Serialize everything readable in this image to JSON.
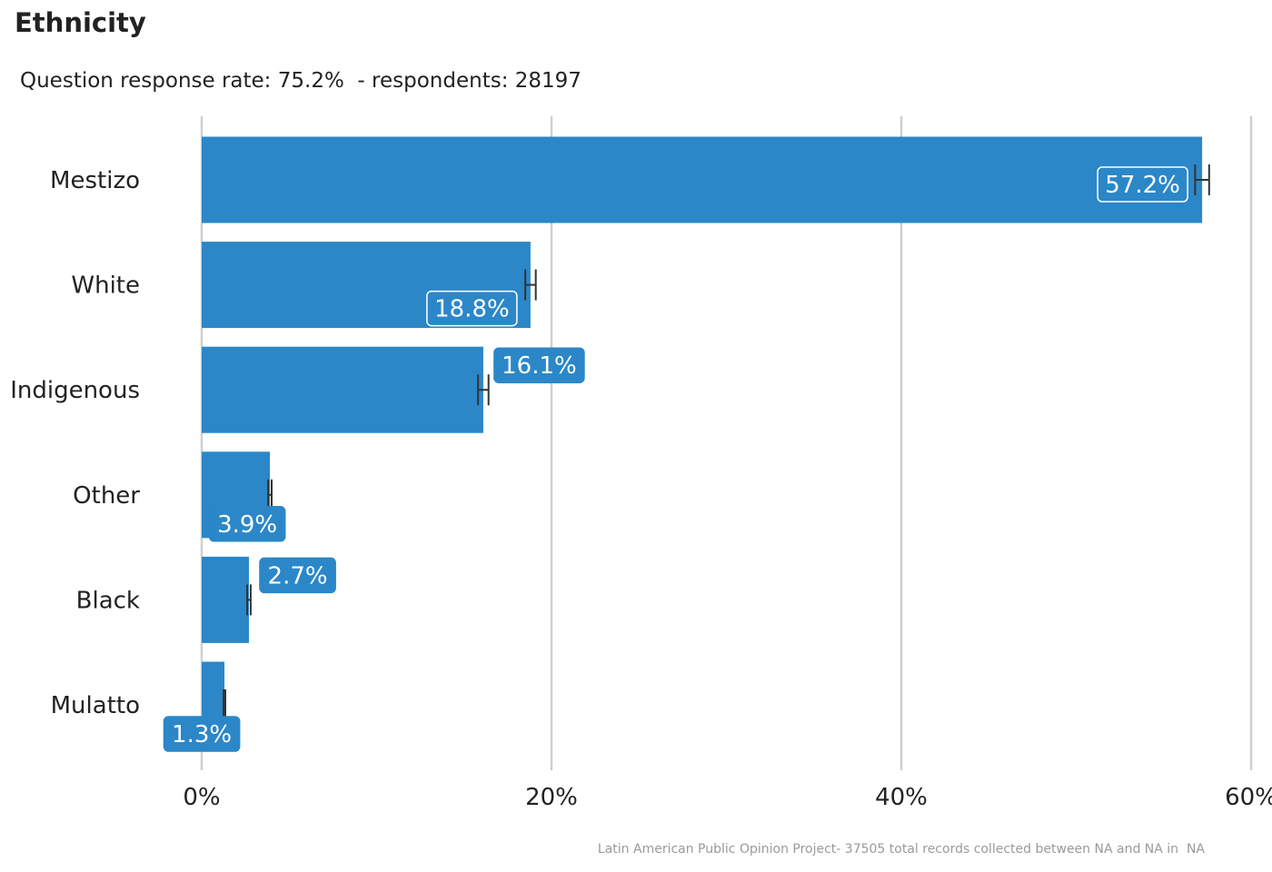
{
  "chart_data": {
    "type": "bar",
    "orientation": "horizontal",
    "title": "Ethnicity",
    "subtitle": "Question response rate: 75.2%  - respondents: 28197",
    "caption": "Latin American Public Opinion Project- 37505 total records collected between NA and NA in  NA",
    "categories": [
      "Mestizo",
      "White",
      "Indigenous",
      "Other",
      "Black",
      "Mulatto"
    ],
    "values": [
      57.2,
      18.8,
      16.1,
      3.9,
      2.7,
      1.3
    ],
    "value_labels": [
      "57.2%",
      "18.8%",
      "16.1%",
      "3.9%",
      "2.7%",
      "1.3%"
    ],
    "error_bars": [
      {
        "low": 56.8,
        "high": 57.6
      },
      {
        "low": 18.5,
        "high": 19.1
      },
      {
        "low": 15.8,
        "high": 16.4
      },
      {
        "low": 3.8,
        "high": 4.0
      },
      {
        "low": 2.6,
        "high": 2.8
      },
      {
        "low": 1.25,
        "high": 1.35
      }
    ],
    "xlim": [
      0,
      60
    ],
    "xticks": [
      0,
      20,
      40,
      60
    ],
    "xtick_labels": [
      "0%",
      "20%",
      "40%",
      "60%"
    ],
    "grid": "vertical",
    "bar_color": "#2b87c8"
  }
}
